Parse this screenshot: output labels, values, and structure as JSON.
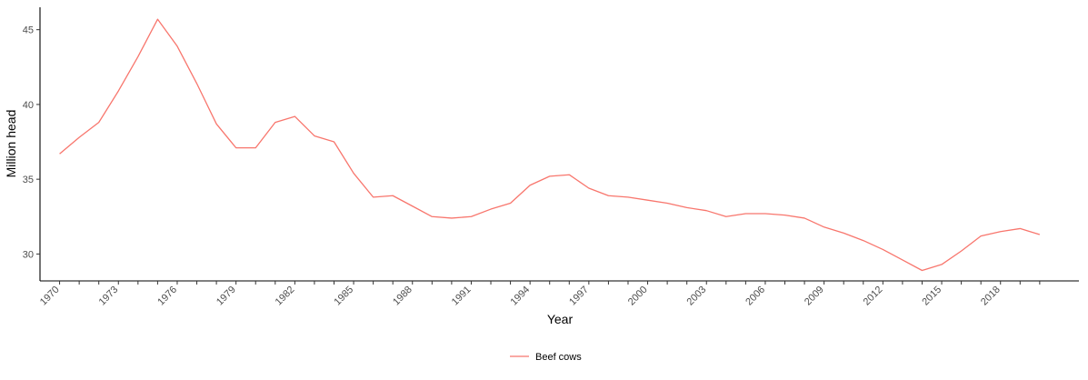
{
  "chart_data": {
    "type": "line",
    "title": "",
    "xlabel": "Year",
    "ylabel": "Million head",
    "xlim": [
      1969,
      2022
    ],
    "ylim": [
      28.2,
      46.5
    ],
    "x_ticks": [
      1970,
      1973,
      1976,
      1979,
      1982,
      1985,
      1988,
      1991,
      1994,
      1997,
      2000,
      2003,
      2006,
      2009,
      2012,
      2015,
      2018
    ],
    "y_ticks": [
      30,
      35,
      40,
      45
    ],
    "grid": false,
    "legend_position": "bottom",
    "series": [
      {
        "name": "Beef cows",
        "color": "#f8766d",
        "x": [
          1970,
          1971,
          1972,
          1973,
          1974,
          1975,
          1976,
          1977,
          1978,
          1979,
          1980,
          1981,
          1982,
          1983,
          1984,
          1985,
          1986,
          1987,
          1988,
          1989,
          1990,
          1991,
          1992,
          1993,
          1994,
          1995,
          1996,
          1997,
          1998,
          1999,
          2000,
          2001,
          2002,
          2003,
          2004,
          2005,
          2006,
          2007,
          2008,
          2009,
          2010,
          2011,
          2012,
          2013,
          2014,
          2015,
          2016,
          2017,
          2018,
          2019,
          2020
        ],
        "values": [
          36.7,
          37.8,
          38.8,
          40.9,
          43.2,
          45.7,
          43.9,
          41.4,
          38.7,
          37.1,
          37.1,
          38.8,
          39.2,
          37.9,
          37.5,
          35.4,
          33.8,
          33.9,
          33.2,
          32.5,
          32.4,
          32.5,
          33.0,
          33.4,
          34.6,
          35.2,
          35.3,
          34.4,
          33.9,
          33.8,
          33.6,
          33.4,
          33.1,
          32.9,
          32.5,
          32.7,
          32.7,
          32.6,
          32.4,
          31.8,
          31.4,
          30.9,
          30.3,
          29.6,
          28.9,
          29.3,
          30.2,
          31.2,
          31.5,
          31.7,
          31.3
        ]
      }
    ]
  }
}
